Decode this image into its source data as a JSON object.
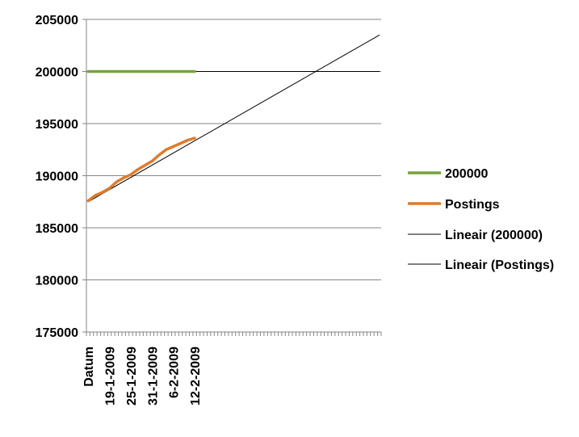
{
  "chart_data": {
    "type": "line",
    "title": "",
    "xlabel": "",
    "ylabel": "",
    "ylim": [
      175000,
      205000
    ],
    "yticks": [
      "205000",
      "200000",
      "195000",
      "190000",
      "185000",
      "180000",
      "175000"
    ],
    "ytick_values": [
      205000,
      200000,
      195000,
      190000,
      185000,
      180000,
      175000
    ],
    "x_categories": [
      "Datum",
      "19-1-2009",
      "25-1-2009",
      "31-1-2009",
      "6-2-2009",
      "12-2-2009"
    ],
    "x_category_index": [
      0,
      6,
      12,
      18,
      24,
      30
    ],
    "x_axis_count": 83,
    "grid": "horizontal",
    "legend_position": "right",
    "series": [
      {
        "name": "200000",
        "color": "#77a13f",
        "x": [
          0,
          30
        ],
        "values": [
          200000,
          200000
        ]
      },
      {
        "name": "Postings",
        "color": "#e07b2a",
        "x": [
          0,
          2,
          4,
          6,
          8,
          10,
          12,
          14,
          16,
          18,
          20,
          22,
          24,
          26,
          28,
          30
        ],
        "values": [
          187600,
          188100,
          188400,
          188800,
          189400,
          189800,
          190100,
          190600,
          191000,
          191400,
          192000,
          192500,
          192800,
          193100,
          193400,
          193600
        ]
      },
      {
        "name": "Lineair (200000)",
        "color": "#000000",
        "x": [
          0,
          82
        ],
        "values": [
          200000,
          200000
        ]
      },
      {
        "name": "Lineair (Postings)",
        "color": "#000000",
        "x": [
          0,
          82
        ],
        "values": [
          187500,
          203500
        ]
      }
    ]
  }
}
